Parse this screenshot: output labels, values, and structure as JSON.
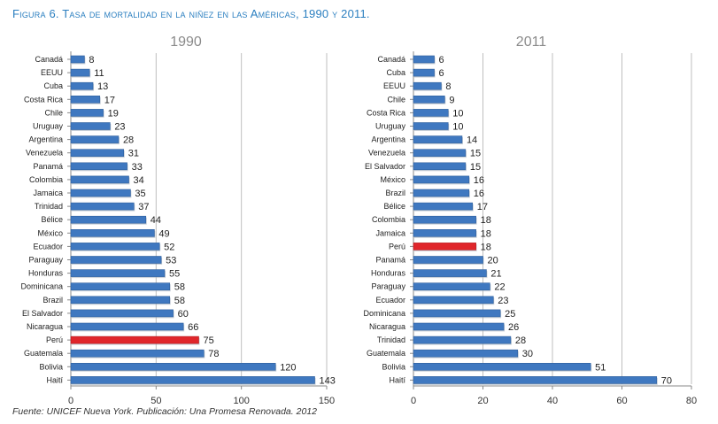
{
  "figure": {
    "title": "Figura 6. Tasa de mortalidad en la niñez en las Américas, 1990 y 2011.",
    "source": "Fuente: UNICEF Nueva York. Publicación: Una Promesa Renovada. 2012"
  },
  "colors": {
    "bar": "#3f78c0",
    "highlight": "#e0262b",
    "grid": "#bfbfbf",
    "title": "#2b7fc0"
  },
  "chart_data": [
    {
      "type": "bar",
      "orientation": "horizontal",
      "title": "1990",
      "categories": [
        "Canadá",
        "EEUU",
        "Cuba",
        "Costa Rica",
        "Chile",
        "Uruguay",
        "Argentina",
        "Venezuela",
        "Panamá",
        "Colombia",
        "Jamaica",
        "Trinidad",
        "Bélice",
        "México",
        "Ecuador",
        "Paraguay",
        "Honduras",
        "Dominicana",
        "Brazil",
        "El Salvador",
        "Nicaragua",
        "Perú",
        "Guatemala",
        "Bolivia",
        "Haití"
      ],
      "values": [
        8,
        11,
        13,
        17,
        19,
        23,
        28,
        31,
        33,
        34,
        35,
        37,
        44,
        49,
        52,
        53,
        55,
        58,
        58,
        60,
        66,
        75,
        78,
        120,
        143
      ],
      "highlight": "Perú",
      "xlim": [
        0,
        150
      ],
      "xticks": [
        0,
        50,
        100,
        150
      ],
      "grid": true
    },
    {
      "type": "bar",
      "orientation": "horizontal",
      "title": "2011",
      "categories": [
        "Canadá",
        "Cuba",
        "EEUU",
        "Chile",
        "Costa Rica",
        "Uruguay",
        "Argentina",
        "Venezuela",
        "El Salvador",
        "México",
        "Brazil",
        "Bélice",
        "Colombia",
        "Jamaica",
        "Perú",
        "Panamá",
        "Honduras",
        "Paraguay",
        "Ecuador",
        "Dominicana",
        "Nicaragua",
        "Trinidad",
        "Guatemala",
        "Bolivia",
        "Haití"
      ],
      "values": [
        6,
        6,
        8,
        9,
        10,
        10,
        14,
        15,
        15,
        16,
        16,
        17,
        18,
        18,
        18,
        20,
        21,
        22,
        23,
        25,
        26,
        28,
        30,
        51,
        70
      ],
      "highlight": "Perú",
      "xlim": [
        0,
        80
      ],
      "xticks": [
        0,
        20,
        40,
        60,
        80
      ],
      "grid": true
    }
  ]
}
